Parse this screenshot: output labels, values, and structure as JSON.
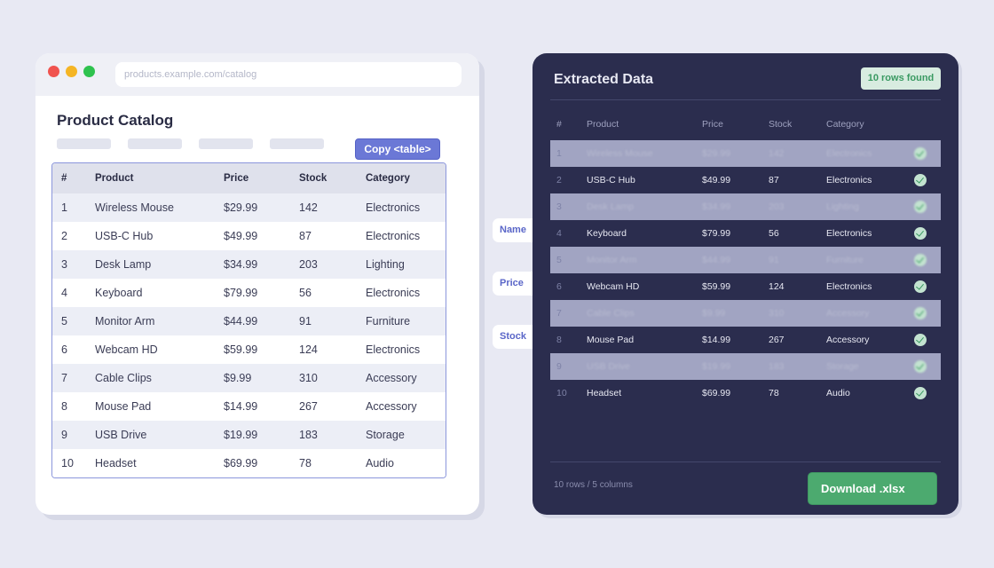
{
  "browser": {
    "url": "products.example.com/catalog",
    "page_title": "Product Catalog",
    "copy_button": "Copy <table>"
  },
  "columns": [
    "#",
    "Product",
    "Price",
    "Stock",
    "Category"
  ],
  "rows": [
    [
      "1",
      "Wireless Mouse",
      "$29.99",
      "142",
      "Electronics"
    ],
    [
      "2",
      "USB-C Hub",
      "$49.99",
      "87",
      "Electronics"
    ],
    [
      "3",
      "Desk Lamp",
      "$34.99",
      "203",
      "Lighting"
    ],
    [
      "4",
      "Keyboard",
      "$79.99",
      "56",
      "Electronics"
    ],
    [
      "5",
      "Monitor Arm",
      "$44.99",
      "91",
      "Furniture"
    ],
    [
      "6",
      "Webcam HD",
      "$59.99",
      "124",
      "Electronics"
    ],
    [
      "7",
      "Cable Clips",
      "$9.99",
      "310",
      "Accessory"
    ],
    [
      "8",
      "Mouse Pad",
      "$14.99",
      "267",
      "Accessory"
    ],
    [
      "9",
      "USB Drive",
      "$19.99",
      "183",
      "Storage"
    ],
    [
      "10",
      "Headset",
      "$69.99",
      "78",
      "Audio"
    ]
  ],
  "tags": [
    "Name",
    "Price",
    "Stock"
  ],
  "panel": {
    "title": "Extracted Data",
    "badge": "10 rows found",
    "footer": "10 rows / 5 columns",
    "download_button": "Download .xlsx"
  },
  "colors": {
    "accent": "#6b78d6",
    "panel_bg": "#2b2d4e",
    "success": "#4caa6f",
    "page_bg": "#e8e9f3"
  }
}
